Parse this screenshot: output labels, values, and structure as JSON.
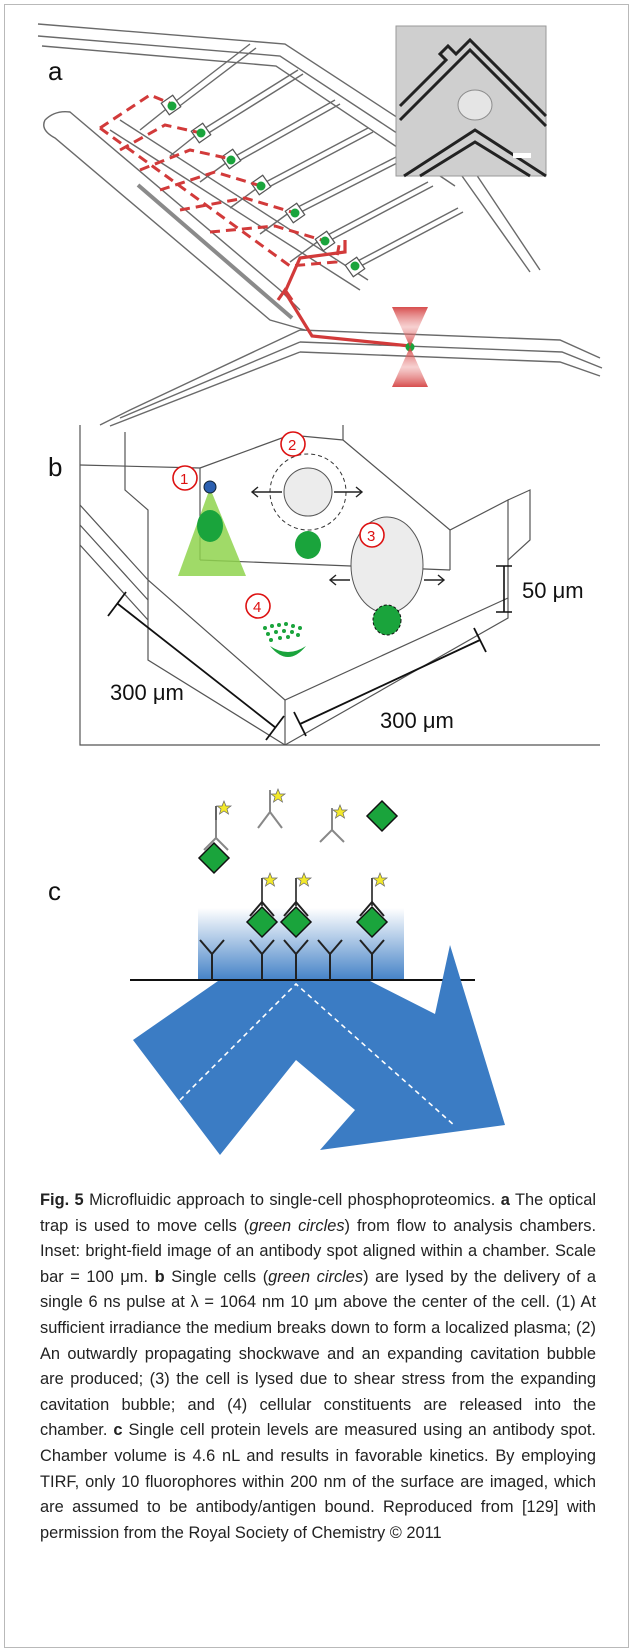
{
  "panels": {
    "a": "a",
    "b": "b",
    "c": "c"
  },
  "panel_b": {
    "steps": [
      "1",
      "2",
      "3",
      "4"
    ],
    "height_label": "50 μm",
    "width_label_left": "300 μm",
    "width_label_right": "300 μm"
  },
  "caption": {
    "fig_label": "Fig. 5",
    "title": " Microfluidic approach to single-cell phosphoproteomics. ",
    "a_label": "a",
    "a_text_1": " The optical trap is used to move cells (",
    "a_italic": "green circles",
    "a_text_2": ") from flow to analysis chambers. Inset: bright-field image of an antibody spot aligned within a chamber. Scale bar = 100 μm. ",
    "b_label": "b",
    "b_text_1": " Single cells (",
    "b_italic": "green circles",
    "b_text_2": ") are lysed by the delivery of a single 6 ns pulse at λ = 1064 nm 10 μm above the center of the cell. (1) At sufficient irradiance the medium breaks down to form a localized plasma; (2) An outwardly propagating shockwave and an expanding cavitation bubble are produced; (3) the cell is lysed due to shear stress from the expanding cavitation bubble; and (4) cellular constituents are released into the chamber. ",
    "c_label": "c",
    "c_text": " Single cell protein levels are measured using an antibody spot. Chamber volume is 4.6 nL and results in favorable kinetics. By employing TIRF, only 10 fluorophores within 200 nm of the surface are imaged, which are assumed to be antibody/antigen bound. Reproduced from [129] with permission from the Royal Society of Chemistry © 2011"
  },
  "colors": {
    "cell_green": "#1aa43c",
    "trap_red": "#d23a3a",
    "tirf_blue": "#3b7cc4",
    "star_yellow": "#f3e92a"
  }
}
